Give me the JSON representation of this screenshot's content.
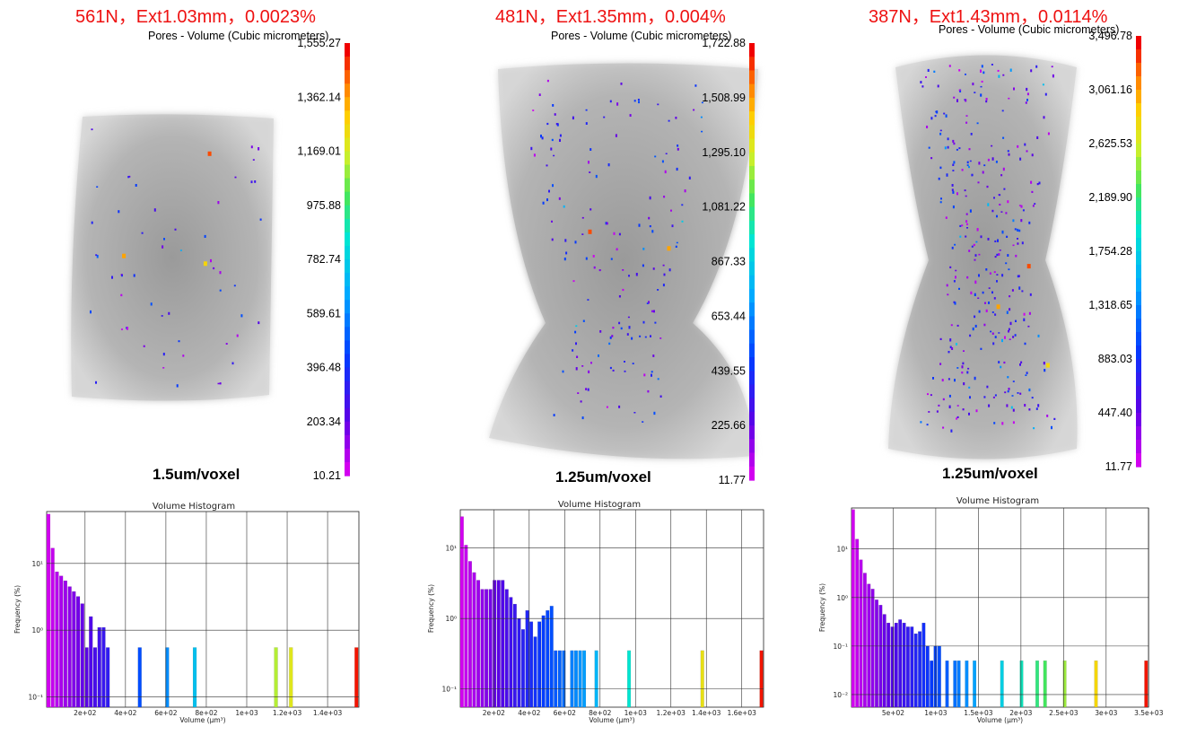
{
  "chart_data": [
    {
      "type": "composite",
      "title": "561N，Ext1.03mm，0.0023%",
      "colorbar": {
        "title": "Pores - Volume (Cubic micrometers)",
        "ticks": [
          "1,555.27",
          "1,362.14",
          "1,169.01",
          "975.88",
          "782.74",
          "589.61",
          "396.48",
          "203.34",
          "10.21"
        ],
        "min": 10.21,
        "max": 1555.27
      },
      "resolution_label": "1.5um/voxel",
      "histogram": {
        "type": "bar",
        "title": "Volume Histogram",
        "xlabel": "Volume (μm³)",
        "ylabel": "Frequency (%)",
        "yscale": "log",
        "xlim": [
          10,
          1555
        ],
        "ylim": [
          0.07,
          60
        ],
        "xticks": [
          200,
          400,
          600,
          800,
          1000,
          1200,
          1400
        ],
        "xticklabels": [
          "2e+02",
          "4e+02",
          "6e+02",
          "8e+02",
          "1e+03",
          "1.2e+03",
          "1.4e+03"
        ],
        "yticks": [
          0.1,
          1,
          10
        ],
        "yticklabels": [
          "10⁻¹",
          "10⁰",
          "10¹"
        ],
        "bin_width": 21,
        "bins": [
          {
            "x": 10,
            "v": 55
          },
          {
            "x": 31,
            "v": 17
          },
          {
            "x": 52,
            "v": 7.5
          },
          {
            "x": 73,
            "v": 6.5
          },
          {
            "x": 94,
            "v": 5.5
          },
          {
            "x": 115,
            "v": 4.5
          },
          {
            "x": 136,
            "v": 3.8
          },
          {
            "x": 157,
            "v": 3.2
          },
          {
            "x": 178,
            "v": 2.5
          },
          {
            "x": 199,
            "v": 0.55
          },
          {
            "x": 220,
            "v": 1.6
          },
          {
            "x": 241,
            "v": 0.55
          },
          {
            "x": 262,
            "v": 1.1
          },
          {
            "x": 283,
            "v": 1.1
          },
          {
            "x": 304,
            "v": 0.55
          },
          {
            "x": 462,
            "v": 0.55
          },
          {
            "x": 598,
            "v": 0.55
          },
          {
            "x": 734,
            "v": 0.55
          },
          {
            "x": 1136,
            "v": 0.55
          },
          {
            "x": 1210,
            "v": 0.55
          },
          {
            "x": 1534,
            "v": 0.55
          }
        ]
      }
    },
    {
      "type": "composite",
      "title": "481N，Ext1.35mm，0.004%",
      "colorbar": {
        "title": "Pores - Volume (Cubic micrometers)",
        "ticks": [
          "1,722.88",
          "1,508.99",
          "1,295.10",
          "1,081.22",
          "867.33",
          "653.44",
          "439.55",
          "225.66",
          "11.77"
        ],
        "min": 11.77,
        "max": 1722.88
      },
      "resolution_label": "1.25um/voxel",
      "histogram": {
        "type": "bar",
        "title": "Volume Histogram",
        "xlabel": "Volume (μm³)",
        "ylabel": "Frequency (%)",
        "yscale": "log",
        "xlim": [
          11,
          1723
        ],
        "ylim": [
          0.055,
          35
        ],
        "xticks": [
          200,
          400,
          600,
          800,
          1000,
          1200,
          1400,
          1600
        ],
        "xticklabels": [
          "2e+02",
          "4e+02",
          "6e+02",
          "8e+02",
          "1e+03",
          "1.2e+03",
          "1.4e+03",
          "1.6e+03"
        ],
        "yticks": [
          0.1,
          1,
          10
        ],
        "yticklabels": [
          "10⁻¹",
          "10⁰",
          "10¹"
        ],
        "bin_width": 23,
        "bins": [
          {
            "x": 11,
            "v": 28
          },
          {
            "x": 34,
            "v": 11
          },
          {
            "x": 57,
            "v": 6.5
          },
          {
            "x": 80,
            "v": 4.5
          },
          {
            "x": 103,
            "v": 3.5
          },
          {
            "x": 126,
            "v": 2.6
          },
          {
            "x": 149,
            "v": 2.6
          },
          {
            "x": 172,
            "v": 2.6
          },
          {
            "x": 195,
            "v": 3.5
          },
          {
            "x": 218,
            "v": 3.5
          },
          {
            "x": 241,
            "v": 3.5
          },
          {
            "x": 264,
            "v": 2.6
          },
          {
            "x": 287,
            "v": 2.0
          },
          {
            "x": 310,
            "v": 1.6
          },
          {
            "x": 333,
            "v": 1.0
          },
          {
            "x": 356,
            "v": 0.7
          },
          {
            "x": 379,
            "v": 1.3
          },
          {
            "x": 402,
            "v": 0.9
          },
          {
            "x": 425,
            "v": 0.55
          },
          {
            "x": 448,
            "v": 0.9
          },
          {
            "x": 471,
            "v": 1.1
          },
          {
            "x": 494,
            "v": 1.3
          },
          {
            "x": 517,
            "v": 1.5
          },
          {
            "x": 540,
            "v": 0.35
          },
          {
            "x": 563,
            "v": 0.35
          },
          {
            "x": 586,
            "v": 0.35
          },
          {
            "x": 632,
            "v": 0.35
          },
          {
            "x": 655,
            "v": 0.35
          },
          {
            "x": 678,
            "v": 0.35
          },
          {
            "x": 701,
            "v": 0.35
          },
          {
            "x": 770,
            "v": 0.35
          },
          {
            "x": 954,
            "v": 0.35
          },
          {
            "x": 1368,
            "v": 0.35
          },
          {
            "x": 1701,
            "v": 0.35
          }
        ]
      }
    },
    {
      "type": "composite",
      "title": "387N，Ext1.43mm，0.0114%",
      "colorbar": {
        "title": "Pores - Volume (Cubic micrometers)",
        "ticks": [
          "3,496.78",
          "3,061.16",
          "2,625.53",
          "2,189.90",
          "1,754.28",
          "1,318.65",
          "883.03",
          "447.40",
          "11.77"
        ],
        "min": 11.77,
        "max": 3496.78
      },
      "resolution_label": "1.25um/voxel",
      "histogram": {
        "type": "bar",
        "title": "Volume Histogram",
        "xlabel": "Volume (μm³)",
        "ylabel": "Frequency (%)",
        "yscale": "log",
        "xlim": [
          11,
          3497
        ],
        "ylim": [
          0.0055,
          70
        ],
        "xticks": [
          500,
          1000,
          1500,
          2000,
          2500,
          3000,
          3500
        ],
        "xticklabels": [
          "5e+02",
          "1e+03",
          "1.5e+03",
          "2e+03",
          "2.5e+03",
          "3e+03",
          "3.5e+03"
        ],
        "yticks": [
          0.01,
          0.1,
          1,
          10
        ],
        "yticklabels": [
          "10⁻²",
          "10⁻¹",
          "10⁰",
          "10¹"
        ],
        "bin_width": 46,
        "bins": [
          {
            "x": 11,
            "v": 65
          },
          {
            "x": 57,
            "v": 16
          },
          {
            "x": 103,
            "v": 6
          },
          {
            "x": 149,
            "v": 3.2
          },
          {
            "x": 195,
            "v": 1.9
          },
          {
            "x": 241,
            "v": 1.5
          },
          {
            "x": 287,
            "v": 0.9
          },
          {
            "x": 333,
            "v": 0.7
          },
          {
            "x": 379,
            "v": 0.45
          },
          {
            "x": 425,
            "v": 0.3
          },
          {
            "x": 471,
            "v": 0.25
          },
          {
            "x": 517,
            "v": 0.3
          },
          {
            "x": 563,
            "v": 0.35
          },
          {
            "x": 609,
            "v": 0.3
          },
          {
            "x": 655,
            "v": 0.25
          },
          {
            "x": 701,
            "v": 0.25
          },
          {
            "x": 747,
            "v": 0.18
          },
          {
            "x": 793,
            "v": 0.2
          },
          {
            "x": 839,
            "v": 0.3
          },
          {
            "x": 885,
            "v": 0.1
          },
          {
            "x": 931,
            "v": 0.05
          },
          {
            "x": 977,
            "v": 0.1
          },
          {
            "x": 1023,
            "v": 0.1
          },
          {
            "x": 1114,
            "v": 0.05
          },
          {
            "x": 1206,
            "v": 0.05
          },
          {
            "x": 1252,
            "v": 0.05
          },
          {
            "x": 1344,
            "v": 0.05
          },
          {
            "x": 1436,
            "v": 0.05
          },
          {
            "x": 1758,
            "v": 0.05
          },
          {
            "x": 1988,
            "v": 0.05
          },
          {
            "x": 2172,
            "v": 0.05
          },
          {
            "x": 2264,
            "v": 0.05
          },
          {
            "x": 2494,
            "v": 0.05
          },
          {
            "x": 2862,
            "v": 0.05
          },
          {
            "x": 3450,
            "v": 0.05
          }
        ]
      }
    }
  ]
}
